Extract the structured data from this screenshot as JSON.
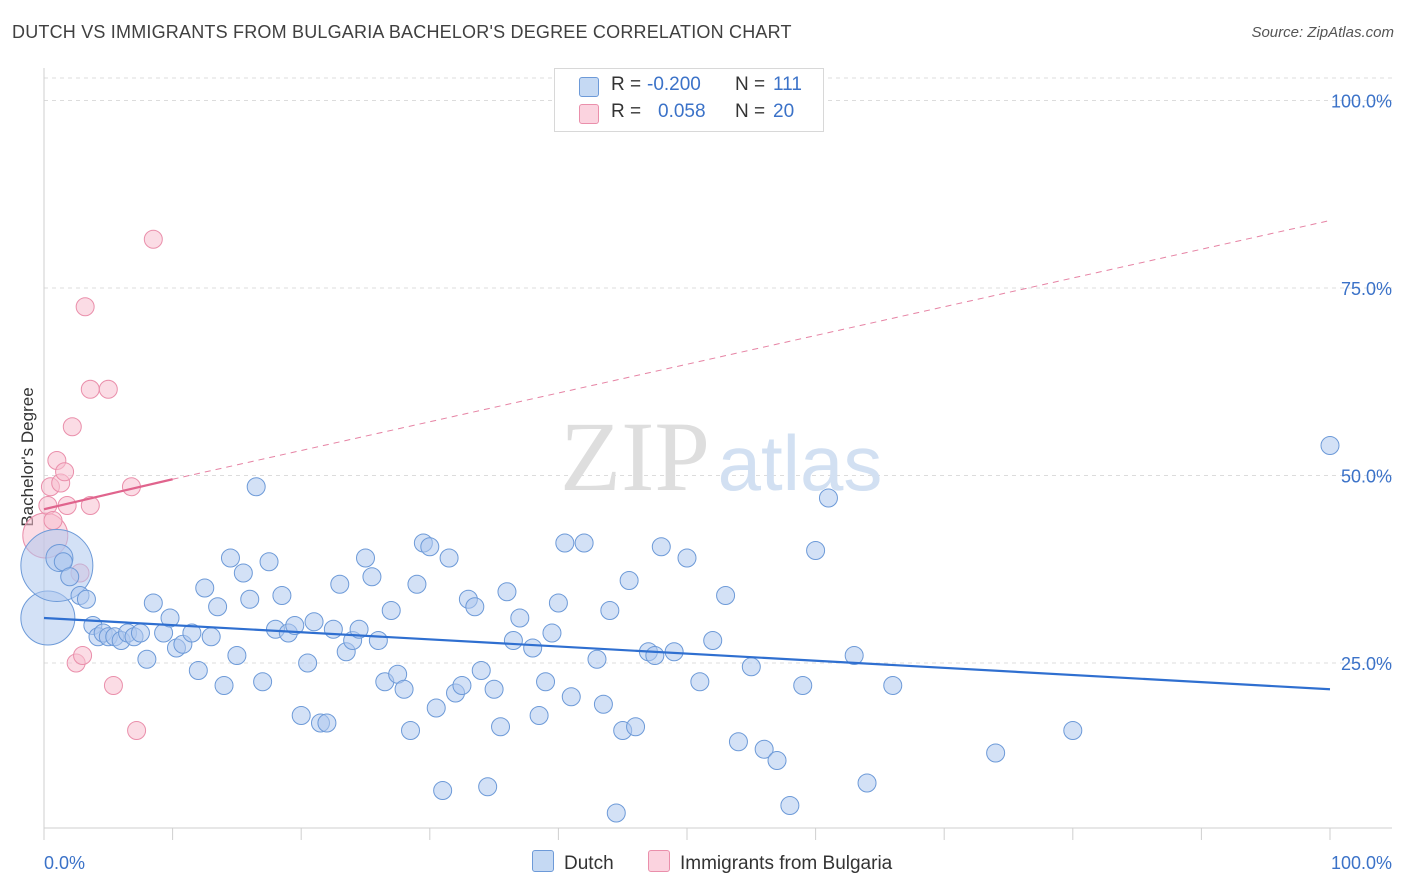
{
  "title": "DUTCH VS IMMIGRANTS FROM BULGARIA BACHELOR'S DEGREE CORRELATION CHART",
  "source": "Source: ZipAtlas.com",
  "watermark": {
    "zip": "ZIP",
    "atlas": "atlas"
  },
  "legend": {
    "rows": [
      {
        "r_label": "R =",
        "r_value": "-0.200",
        "n_label": "N =",
        "n_value": "111"
      },
      {
        "r_label": "R =",
        "r_value": "0.058",
        "n_label": "N =",
        "n_value": "20"
      }
    ]
  },
  "bottom_legend": {
    "series1": "Dutch",
    "series2": "Immigrants from Bulgaria"
  },
  "colors": {
    "dutch_fill": "#aec8ee",
    "dutch_stroke": "#6d9ad8",
    "dutch_line": "#2f6fd0",
    "bulg_fill": "#f7bfd0",
    "bulg_stroke": "#ea8fab",
    "bulg_line": "#e0648d",
    "grid": "#dcdcdc",
    "tick_text": "#3b72c8"
  },
  "chart_data": {
    "type": "scatter",
    "title": "DUTCH VS IMMIGRANTS FROM BULGARIA BACHELOR'S DEGREE CORRELATION CHART",
    "xlabel": "",
    "ylabel": "Bachelor's Degree",
    "xlim": [
      0,
      100
    ],
    "ylim": [
      3,
      103
    ],
    "x_tick_labels": [
      "0.0%",
      "100.0%"
    ],
    "y_ticks": [
      25,
      50,
      75,
      100
    ],
    "y_tick_labels": [
      "25.0%",
      "50.0%",
      "75.0%",
      "100.0%"
    ],
    "series": [
      {
        "name": "Dutch",
        "r": -0.2,
        "n": 111,
        "trend": {
          "x0": 0,
          "y0": 31,
          "x1": 100,
          "y1": 21.5
        },
        "points": [
          [
            0.3,
            31,
            3
          ],
          [
            1,
            38,
            4
          ],
          [
            1.2,
            39,
            1.5
          ],
          [
            1.5,
            38.5,
            1
          ],
          [
            2,
            36.5,
            1
          ],
          [
            2.8,
            34,
            1
          ],
          [
            3.3,
            33.5,
            1
          ],
          [
            3.8,
            30,
            1
          ],
          [
            4.2,
            28.5,
            1
          ],
          [
            4.6,
            29,
            1
          ],
          [
            5,
            28.5,
            1
          ],
          [
            5.5,
            28.5,
            1
          ],
          [
            6,
            28,
            1
          ],
          [
            6.5,
            29,
            1
          ],
          [
            7,
            28.5,
            1
          ],
          [
            7.5,
            29,
            1
          ],
          [
            8,
            25.5,
            1
          ],
          [
            8.5,
            33,
            1
          ],
          [
            9.3,
            29,
            1
          ],
          [
            9.8,
            31,
            1
          ],
          [
            10.3,
            27,
            1
          ],
          [
            10.8,
            27.5,
            1
          ],
          [
            11.5,
            29,
            1
          ],
          [
            12,
            24,
            1
          ],
          [
            12.5,
            35,
            1
          ],
          [
            13,
            28.5,
            1
          ],
          [
            13.5,
            32.5,
            1
          ],
          [
            14,
            22,
            1
          ],
          [
            14.5,
            39,
            1
          ],
          [
            15,
            26,
            1
          ],
          [
            15.5,
            37,
            1
          ],
          [
            16,
            33.5,
            1
          ],
          [
            16.5,
            48.5,
            1
          ],
          [
            17,
            22.5,
            1
          ],
          [
            17.5,
            38.5,
            1
          ],
          [
            18,
            29.5,
            1
          ],
          [
            18.5,
            34,
            1
          ],
          [
            19,
            29,
            1
          ],
          [
            19.5,
            30,
            1
          ],
          [
            20,
            18,
            1
          ],
          [
            20.5,
            25,
            1
          ],
          [
            21,
            30.5,
            1
          ],
          [
            21.5,
            17,
            1
          ],
          [
            22,
            17,
            1
          ],
          [
            22.5,
            29.5,
            1
          ],
          [
            23,
            35.5,
            1
          ],
          [
            23.5,
            26.5,
            1
          ],
          [
            24,
            28,
            1
          ],
          [
            24.5,
            29.5,
            1
          ],
          [
            25,
            39,
            1
          ],
          [
            25.5,
            36.5,
            1
          ],
          [
            26,
            28,
            1
          ],
          [
            26.5,
            22.5,
            1
          ],
          [
            27,
            32,
            1
          ],
          [
            27.5,
            23.5,
            1
          ],
          [
            28,
            21.5,
            1
          ],
          [
            28.5,
            16,
            1
          ],
          [
            29,
            35.5,
            1
          ],
          [
            29.5,
            41,
            1
          ],
          [
            30,
            40.5,
            1
          ],
          [
            30.5,
            19,
            1
          ],
          [
            31,
            8,
            1
          ],
          [
            31.5,
            39,
            1
          ],
          [
            32,
            21,
            1
          ],
          [
            32.5,
            22,
            1
          ],
          [
            33,
            33.5,
            1
          ],
          [
            33.5,
            32.5,
            1
          ],
          [
            34,
            24,
            1
          ],
          [
            34.5,
            8.5,
            1
          ],
          [
            35,
            21.5,
            1
          ],
          [
            35.5,
            16.5,
            1
          ],
          [
            36,
            34.5,
            1
          ],
          [
            36.5,
            28,
            1
          ],
          [
            37,
            31,
            1
          ],
          [
            38,
            27,
            1
          ],
          [
            38.5,
            18,
            1
          ],
          [
            39,
            22.5,
            1
          ],
          [
            39.5,
            29,
            1
          ],
          [
            40,
            33,
            1
          ],
          [
            40.5,
            41,
            1
          ],
          [
            41,
            20.5,
            1
          ],
          [
            42,
            41,
            1
          ],
          [
            43,
            25.5,
            1
          ],
          [
            43.5,
            19.5,
            1
          ],
          [
            44,
            32,
            1
          ],
          [
            44.5,
            5,
            1
          ],
          [
            45,
            16,
            1
          ],
          [
            45.5,
            36,
            1
          ],
          [
            46,
            16.5,
            1
          ],
          [
            47,
            26.5,
            1
          ],
          [
            47.5,
            26,
            1
          ],
          [
            48,
            40.5,
            1
          ],
          [
            49,
            26.5,
            1
          ],
          [
            50,
            39,
            1
          ],
          [
            51,
            22.5,
            1
          ],
          [
            52,
            28,
            1
          ],
          [
            53,
            34,
            1
          ],
          [
            54,
            14.5,
            1
          ],
          [
            55,
            24.5,
            1
          ],
          [
            56,
            13.5,
            1
          ],
          [
            57,
            12,
            1
          ],
          [
            58,
            6,
            1
          ],
          [
            59,
            22,
            1
          ],
          [
            60,
            40,
            1
          ],
          [
            61,
            47,
            1
          ],
          [
            63,
            26,
            1
          ],
          [
            64,
            9,
            1
          ],
          [
            66,
            22,
            1
          ],
          [
            74,
            13,
            1
          ],
          [
            80,
            16,
            1
          ],
          [
            100,
            54,
            1
          ]
        ]
      },
      {
        "name": "Immigrants from Bulgaria",
        "r": 0.058,
        "n": 20,
        "trend_solid": {
          "x0": 0,
          "y0": 45.5,
          "x1": 10,
          "y1": 49.5
        },
        "trend_dashed": {
          "x0": 10,
          "y0": 49.5,
          "x1": 100,
          "y1": 84
        },
        "points": [
          [
            0.1,
            42,
            2.5
          ],
          [
            0.3,
            46,
            1
          ],
          [
            0.5,
            48.5,
            1
          ],
          [
            0.7,
            44,
            1
          ],
          [
            1,
            52,
            1
          ],
          [
            1.3,
            49,
            1
          ],
          [
            1.6,
            50.5,
            1
          ],
          [
            1.8,
            46,
            1
          ],
          [
            2.2,
            56.5,
            1
          ],
          [
            2.5,
            25,
            1
          ],
          [
            2.8,
            37,
            1
          ],
          [
            3,
            26,
            1
          ],
          [
            3.2,
            72.5,
            1
          ],
          [
            3.6,
            46,
            1
          ],
          [
            3.6,
            61.5,
            1
          ],
          [
            5,
            61.5,
            1
          ],
          [
            5.4,
            22,
            1
          ],
          [
            6.8,
            48.5,
            1
          ],
          [
            7.2,
            16,
            1
          ],
          [
            8.5,
            81.5,
            1
          ]
        ]
      }
    ],
    "legend_position": "top-center"
  }
}
